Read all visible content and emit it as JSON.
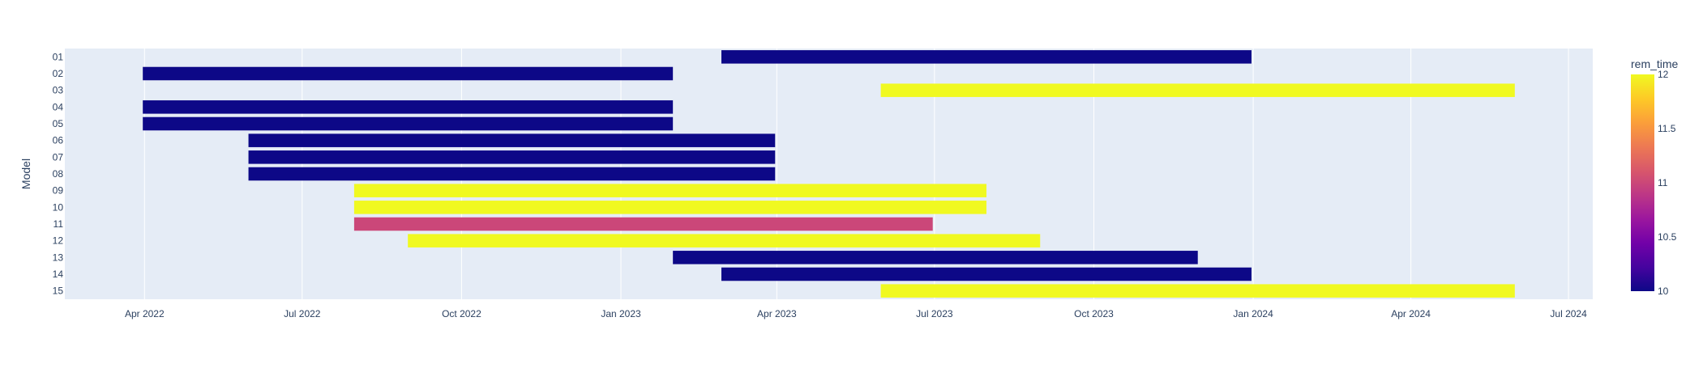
{
  "chart_data": {
    "type": "gantt",
    "ylabel": "Model",
    "xlabel": "",
    "x_range": [
      "2022-02-14",
      "2024-07-15"
    ],
    "x_tick_labels": [
      {
        "date": "2022-04-01",
        "label": "Apr 2022"
      },
      {
        "date": "2022-07-01",
        "label": "Jul 2022"
      },
      {
        "date": "2022-10-01",
        "label": "Oct 2022"
      },
      {
        "date": "2023-01-01",
        "label": "Jan 2023"
      },
      {
        "date": "2023-04-01",
        "label": "Apr 2023"
      },
      {
        "date": "2023-07-01",
        "label": "Jul 2023"
      },
      {
        "date": "2023-10-01",
        "label": "Oct 2023"
      },
      {
        "date": "2024-01-01",
        "label": "Jan 2024"
      },
      {
        "date": "2024-04-01",
        "label": "Apr 2024"
      },
      {
        "date": "2024-07-01",
        "label": "Jul 2024"
      }
    ],
    "tasks": [
      {
        "model": "01",
        "start": "2023-02-28",
        "end": "2023-12-31",
        "rem_time": 10
      },
      {
        "model": "02",
        "start": "2022-03-31",
        "end": "2023-01-31",
        "rem_time": 10
      },
      {
        "model": "03",
        "start": "2023-05-31",
        "end": "2024-05-31",
        "rem_time": 12
      },
      {
        "model": "04",
        "start": "2022-03-31",
        "end": "2023-01-31",
        "rem_time": 10
      },
      {
        "model": "05",
        "start": "2022-03-31",
        "end": "2023-01-31",
        "rem_time": 10
      },
      {
        "model": "06",
        "start": "2022-05-31",
        "end": "2023-03-31",
        "rem_time": 10
      },
      {
        "model": "07",
        "start": "2022-05-31",
        "end": "2023-03-31",
        "rem_time": 10
      },
      {
        "model": "08",
        "start": "2022-05-31",
        "end": "2023-03-31",
        "rem_time": 10
      },
      {
        "model": "09",
        "start": "2022-07-31",
        "end": "2023-07-31",
        "rem_time": 12
      },
      {
        "model": "10",
        "start": "2022-07-31",
        "end": "2023-07-31",
        "rem_time": 12
      },
      {
        "model": "11",
        "start": "2022-07-31",
        "end": "2023-06-30",
        "rem_time": 11
      },
      {
        "model": "12",
        "start": "2022-08-31",
        "end": "2023-08-31",
        "rem_time": 12
      },
      {
        "model": "13",
        "start": "2023-01-31",
        "end": "2023-11-30",
        "rem_time": 10
      },
      {
        "model": "14",
        "start": "2023-02-28",
        "end": "2023-12-31",
        "rem_time": 10
      },
      {
        "model": "15",
        "start": "2023-05-31",
        "end": "2024-05-31",
        "rem_time": 12
      }
    ],
    "colorbar": {
      "title": "rem_time",
      "min": 10,
      "max": 12,
      "ticks": [
        "12",
        "11.5",
        "11",
        "10.5",
        "10"
      ],
      "colorscale": [
        "#0d0887",
        "#46039f",
        "#7201a8",
        "#9c179e",
        "#bd3786",
        "#d8576b",
        "#ed7953",
        "#fb9f3a",
        "#fdca26",
        "#f0f921"
      ]
    },
    "grid": true,
    "plot_background": "#e5ecf6"
  }
}
